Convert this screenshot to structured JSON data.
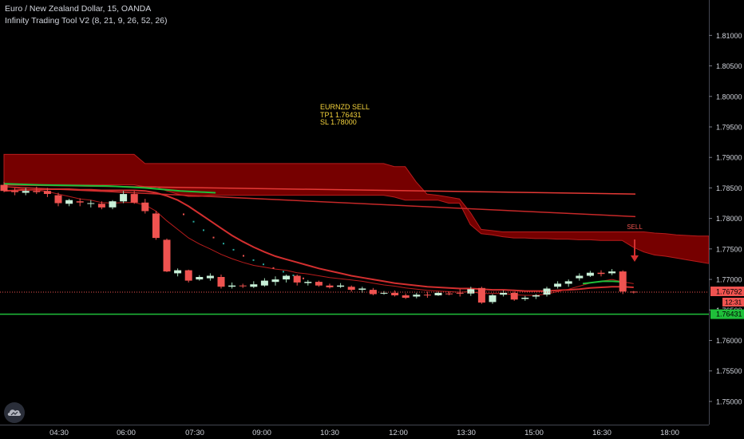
{
  "legend": {
    "symbol_line": "Euro / New Zealand Dollar, 15, OANDA",
    "indicator_line": "Infinity Trading Tool V2 (8, 21, 9, 26, 52, 26)"
  },
  "annotation": {
    "line1": "EURNZD SELL",
    "line2": "TP1 1.76431",
    "line3": "SL 1.78000"
  },
  "sell_label": "SELL",
  "colors": {
    "background": "#000000",
    "bull": "#c8f0d8",
    "bear": "#ef5350",
    "cloud": "#8b0000",
    "ema_red": "#d32f2f",
    "green_line": "#1fbf3a",
    "axis_text": "#d1d4dc"
  },
  "chart_data": {
    "type": "candlestick",
    "title": "Euro / New Zealand Dollar, 15, OANDA",
    "y_ticks": [
      "1.81000",
      "1.80500",
      "1.80000",
      "1.79500",
      "1.79000",
      "1.78500",
      "1.78000",
      "1.77500",
      "1.77000",
      "1.76500",
      "1.76000",
      "1.75500",
      "1.75000"
    ],
    "y_tick_values": [
      1.81,
      1.805,
      1.8,
      1.795,
      1.79,
      1.785,
      1.78,
      1.775,
      1.77,
      1.765,
      1.76,
      1.755,
      1.75
    ],
    "x_ticks": [
      "04:30",
      "06:00",
      "07:30",
      "09:00",
      "10:30",
      "12:00",
      "13:30",
      "15:00",
      "16:30",
      "18:00"
    ],
    "ylim": [
      1.7462,
      1.8158
    ],
    "price_label": "1.76792",
    "countdown_label": "12:31",
    "tp_label": "1.76431",
    "tp_value": 1.76431,
    "last_price": 1.76792,
    "candles": [
      {
        "o": 1.7855,
        "h": 1.786,
        "l": 1.7843,
        "c": 1.7845
      },
      {
        "o": 1.7845,
        "h": 1.785,
        "l": 1.7838,
        "c": 1.7843
      },
      {
        "o": 1.7842,
        "h": 1.785,
        "l": 1.7838,
        "c": 1.7845
      },
      {
        "o": 1.7845,
        "h": 1.7852,
        "l": 1.784,
        "c": 1.7843
      },
      {
        "o": 1.7845,
        "h": 1.785,
        "l": 1.7835,
        "c": 1.784
      },
      {
        "o": 1.7838,
        "h": 1.7842,
        "l": 1.782,
        "c": 1.7825
      },
      {
        "o": 1.7824,
        "h": 1.7832,
        "l": 1.782,
        "c": 1.783
      },
      {
        "o": 1.7828,
        "h": 1.7833,
        "l": 1.782,
        "c": 1.7826
      },
      {
        "o": 1.7824,
        "h": 1.783,
        "l": 1.7818,
        "c": 1.7825
      },
      {
        "o": 1.7824,
        "h": 1.7828,
        "l": 1.7815,
        "c": 1.7818
      },
      {
        "o": 1.7818,
        "h": 1.783,
        "l": 1.7815,
        "c": 1.7828
      },
      {
        "o": 1.7828,
        "h": 1.7845,
        "l": 1.7825,
        "c": 1.784
      },
      {
        "o": 1.784,
        "h": 1.7845,
        "l": 1.7824,
        "c": 1.7826
      },
      {
        "o": 1.7826,
        "h": 1.7832,
        "l": 1.7808,
        "c": 1.7812
      },
      {
        "o": 1.7808,
        "h": 1.7812,
        "l": 1.7765,
        "c": 1.7768
      },
      {
        "o": 1.7765,
        "h": 1.7767,
        "l": 1.7712,
        "c": 1.7713
      },
      {
        "o": 1.771,
        "h": 1.7718,
        "l": 1.7705,
        "c": 1.7715
      },
      {
        "o": 1.7715,
        "h": 1.7716,
        "l": 1.7695,
        "c": 1.7698
      },
      {
        "o": 1.77,
        "h": 1.7707,
        "l": 1.7698,
        "c": 1.7704
      },
      {
        "o": 1.7702,
        "h": 1.771,
        "l": 1.7698,
        "c": 1.7706
      },
      {
        "o": 1.7704,
        "h": 1.7708,
        "l": 1.7685,
        "c": 1.7688
      },
      {
        "o": 1.7688,
        "h": 1.7695,
        "l": 1.7685,
        "c": 1.769
      },
      {
        "o": 1.769,
        "h": 1.7693,
        "l": 1.7686,
        "c": 1.7689
      },
      {
        "o": 1.7688,
        "h": 1.7697,
        "l": 1.7686,
        "c": 1.7692
      },
      {
        "o": 1.769,
        "h": 1.7702,
        "l": 1.7688,
        "c": 1.7698
      },
      {
        "o": 1.7696,
        "h": 1.7705,
        "l": 1.769,
        "c": 1.77
      },
      {
        "o": 1.77,
        "h": 1.7708,
        "l": 1.7695,
        "c": 1.7706
      },
      {
        "o": 1.7706,
        "h": 1.7708,
        "l": 1.769,
        "c": 1.7695
      },
      {
        "o": 1.7694,
        "h": 1.7699,
        "l": 1.769,
        "c": 1.7696
      },
      {
        "o": 1.7696,
        "h": 1.7698,
        "l": 1.7688,
        "c": 1.769
      },
      {
        "o": 1.769,
        "h": 1.7693,
        "l": 1.7685,
        "c": 1.7687
      },
      {
        "o": 1.7688,
        "h": 1.7694,
        "l": 1.7686,
        "c": 1.769
      },
      {
        "o": 1.7688,
        "h": 1.769,
        "l": 1.768,
        "c": 1.7683
      },
      {
        "o": 1.7683,
        "h": 1.7688,
        "l": 1.7678,
        "c": 1.7685
      },
      {
        "o": 1.7683,
        "h": 1.7686,
        "l": 1.7674,
        "c": 1.7676
      },
      {
        "o": 1.7677,
        "h": 1.7681,
        "l": 1.7675,
        "c": 1.7678
      },
      {
        "o": 1.7678,
        "h": 1.7682,
        "l": 1.7672,
        "c": 1.7674
      },
      {
        "o": 1.7674,
        "h": 1.7677,
        "l": 1.7668,
        "c": 1.767
      },
      {
        "o": 1.7672,
        "h": 1.7678,
        "l": 1.7669,
        "c": 1.7675
      },
      {
        "o": 1.7675,
        "h": 1.768,
        "l": 1.767,
        "c": 1.7674
      },
      {
        "o": 1.7674,
        "h": 1.768,
        "l": 1.7673,
        "c": 1.7678
      },
      {
        "o": 1.7677,
        "h": 1.768,
        "l": 1.7674,
        "c": 1.7676
      },
      {
        "o": 1.7678,
        "h": 1.7684,
        "l": 1.7672,
        "c": 1.7677
      },
      {
        "o": 1.7677,
        "h": 1.7688,
        "l": 1.7673,
        "c": 1.7684
      },
      {
        "o": 1.7686,
        "h": 1.7688,
        "l": 1.766,
        "c": 1.7662
      },
      {
        "o": 1.7663,
        "h": 1.7676,
        "l": 1.766,
        "c": 1.7674
      },
      {
        "o": 1.7675,
        "h": 1.7682,
        "l": 1.7672,
        "c": 1.7678
      },
      {
        "o": 1.7678,
        "h": 1.768,
        "l": 1.7665,
        "c": 1.7667
      },
      {
        "o": 1.7668,
        "h": 1.7673,
        "l": 1.7665,
        "c": 1.767
      },
      {
        "o": 1.7672,
        "h": 1.7676,
        "l": 1.7668,
        "c": 1.7674
      },
      {
        "o": 1.7675,
        "h": 1.7688,
        "l": 1.7672,
        "c": 1.7685
      },
      {
        "o": 1.7688,
        "h": 1.7697,
        "l": 1.7685,
        "c": 1.7693
      },
      {
        "o": 1.7693,
        "h": 1.77,
        "l": 1.7688,
        "c": 1.7697
      },
      {
        "o": 1.7702,
        "h": 1.771,
        "l": 1.7698,
        "c": 1.7706
      },
      {
        "o": 1.7706,
        "h": 1.7714,
        "l": 1.7704,
        "c": 1.7711
      },
      {
        "o": 1.7711,
        "h": 1.7715,
        "l": 1.7705,
        "c": 1.7709
      },
      {
        "o": 1.771,
        "h": 1.7717,
        "l": 1.7707,
        "c": 1.7713
      },
      {
        "o": 1.7713,
        "h": 1.7715,
        "l": 1.7676,
        "c": 1.768
      },
      {
        "o": 1.768,
        "h": 1.7681,
        "l": 1.7677,
        "c": 1.7679
      }
    ],
    "ema_fast": [
      1.7852,
      1.785,
      1.7848,
      1.7846,
      1.7844,
      1.784,
      1.7836,
      1.7832,
      1.783,
      1.7826,
      1.7825,
      1.7826,
      1.7826,
      1.7822,
      1.7812,
      1.7796,
      1.7782,
      1.7768,
      1.7758,
      1.775,
      1.7741,
      1.7734,
      1.7728,
      1.7723,
      1.772,
      1.7717,
      1.7715,
      1.7711,
      1.7709,
      1.7706,
      1.7703,
      1.7701,
      1.7699,
      1.7697,
      1.7694,
      1.7691,
      1.7689,
      1.7686,
      1.7684,
      1.7682,
      1.7681,
      1.768,
      1.7679,
      1.768,
      1.7677,
      1.7677,
      1.7677,
      1.7675,
      1.7674,
      1.7674,
      1.7676,
      1.768,
      1.7684,
      1.7689,
      1.7694,
      1.7697,
      1.77,
      1.7696,
      1.7693
    ],
    "ema_slow": [
      1.7845,
      1.7846,
      1.7847,
      1.7847,
      1.7848,
      1.7848,
      1.7848,
      1.7847,
      1.7847,
      1.7846,
      1.7846,
      1.7846,
      1.7846,
      1.7845,
      1.7842,
      1.7837,
      1.783,
      1.782,
      1.7808,
      1.7796,
      1.7784,
      1.7772,
      1.7762,
      1.7753,
      1.7745,
      1.7738,
      1.7733,
      1.7728,
      1.7723,
      1.7718,
      1.7714,
      1.771,
      1.7706,
      1.7703,
      1.77,
      1.7697,
      1.7694,
      1.7692,
      1.769,
      1.7688,
      1.7687,
      1.7686,
      1.7685,
      1.7685,
      1.7684,
      1.7683,
      1.7683,
      1.7682,
      1.7681,
      1.7681,
      1.7681,
      1.7682,
      1.7683,
      1.7684,
      1.7686,
      1.7687,
      1.7688,
      1.7688,
      1.7687
    ],
    "cloud_top": [
      1.7905,
      1.7905,
      1.7905,
      1.7905,
      1.7905,
      1.7905,
      1.7905,
      1.7905,
      1.7905,
      1.7905,
      1.7905,
      1.7905,
      1.7905,
      1.789,
      1.789,
      1.789,
      1.789,
      1.789,
      1.789,
      1.789,
      1.789,
      1.789,
      1.789,
      1.789,
      1.789,
      1.789,
      1.789,
      1.789,
      1.789,
      1.789,
      1.789,
      1.789,
      1.789,
      1.789,
      1.789,
      1.789,
      1.7885,
      1.7885,
      1.786,
      1.784,
      1.7838,
      1.7835,
      1.7832,
      1.781,
      1.7782,
      1.778,
      1.7778,
      1.7778,
      1.7778,
      1.7778,
      1.7778,
      1.7778,
      1.7778,
      1.7778,
      1.7778,
      1.7778,
      1.7778,
      1.7778,
      1.7778,
      1.7778,
      1.7776,
      1.7775,
      1.7773,
      1.7772,
      1.7771,
      1.7771
    ],
    "cloud_bottom": [
      1.7855,
      1.7855,
      1.7855,
      1.7855,
      1.7855,
      1.7855,
      1.7855,
      1.7855,
      1.7855,
      1.7855,
      1.7855,
      1.7855,
      1.7855,
      1.7852,
      1.7852,
      1.7845,
      1.784,
      1.7836,
      1.7836,
      1.7838,
      1.7838,
      1.7838,
      1.7838,
      1.7838,
      1.7838,
      1.7838,
      1.7838,
      1.7838,
      1.7838,
      1.7838,
      1.7838,
      1.7838,
      1.7838,
      1.7838,
      1.7838,
      1.7838,
      1.7835,
      1.783,
      1.783,
      1.783,
      1.783,
      1.7825,
      1.7825,
      1.779,
      1.7775,
      1.7773,
      1.777,
      1.7768,
      1.7768,
      1.7767,
      1.7767,
      1.7766,
      1.7766,
      1.7765,
      1.7765,
      1.7764,
      1.7764,
      1.7764,
      1.7753,
      1.7745,
      1.774,
      1.7738,
      1.7735,
      1.7732,
      1.7729,
      1.7726
    ],
    "line_a": [
      1.7855,
      1.784
    ],
    "line_b": [
      1.7852,
      1.7803
    ],
    "green_line": [
      1.7857,
      1.7855,
      1.7854,
      1.7853,
      1.785,
      1.7845,
      1.7842
    ],
    "green_tail": [
      1.7693,
      1.7695,
      1.7697,
      1.7697,
      1.7696
    ],
    "signal_dots": [
      1.7808,
      1.7796,
      1.7782,
      1.777,
      1.776,
      1.775,
      1.774,
      1.7733,
      1.7726,
      1.772,
      1.7714,
      1.7708,
      1.7703
    ]
  }
}
